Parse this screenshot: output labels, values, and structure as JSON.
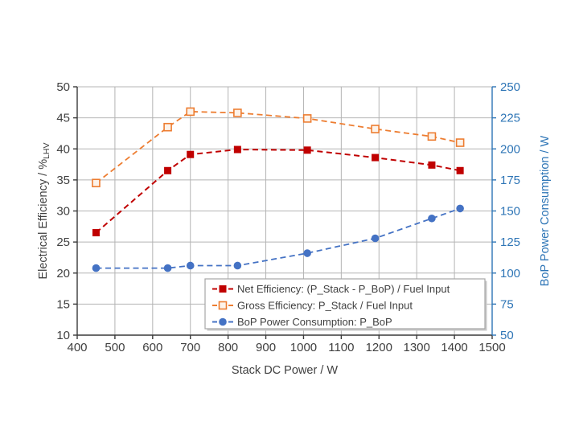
{
  "chart_data": {
    "type": "line",
    "title": "",
    "xlabel": "Stack DC Power / W",
    "ylabel_left": {
      "main": "Electrical Efficiency / %",
      "sub": "LHV"
    },
    "ylabel_right": "BoP Power Consumption / W",
    "x_axis": {
      "min": 400,
      "max": 1500,
      "ticks": [
        400,
        500,
        600,
        700,
        800,
        900,
        1000,
        1100,
        1200,
        1300,
        1400,
        1500
      ]
    },
    "y_left": {
      "min": 10,
      "max": 50,
      "ticks": [
        10,
        15,
        20,
        25,
        30,
        35,
        40,
        45,
        50
      ]
    },
    "y_right": {
      "min": 50,
      "max": 250,
      "ticks": [
        50,
        75,
        100,
        125,
        150,
        175,
        200,
        225,
        250
      ]
    },
    "grid": true,
    "legend_position": "inside-bottom",
    "x": [
      450,
      640,
      700,
      825,
      1010,
      1190,
      1340,
      1415
    ],
    "series": [
      {
        "name": "Net Efficiency: (P_Stack - P_BoP) / Fuel Input",
        "axis": "left",
        "color": "#C00000",
        "marker": "square-filled",
        "line_style": "dashed",
        "values": [
          26.5,
          36.5,
          39.1,
          39.9,
          39.8,
          38.6,
          37.4,
          36.5
        ]
      },
      {
        "name": "Gross Efficiency: P_Stack / Fuel Input",
        "axis": "left",
        "color": "#ED7D31",
        "marker": "square-open",
        "line_style": "dashed",
        "values": [
          34.5,
          43.5,
          46.0,
          45.8,
          44.9,
          43.2,
          42.0,
          41.0
        ]
      },
      {
        "name": "BoP Power Consumption: P_BoP",
        "axis": "right",
        "color": "#4472C4",
        "marker": "circle-filled",
        "line_style": "dashed",
        "values": [
          104,
          104,
          106,
          106,
          116,
          128,
          144,
          152
        ]
      }
    ]
  },
  "colors": {
    "background": "#FFFFFF",
    "axis_dark": "#3A3A3A",
    "tick_text": "#404040",
    "right_axis": "#2E75B6",
    "grid": "#B4B4B4",
    "legend_border": "#A6A6A6",
    "legend_shadow": "#C9C9C9",
    "legend_text": "#404040",
    "open_marker_fill": "#FDF3EA"
  }
}
